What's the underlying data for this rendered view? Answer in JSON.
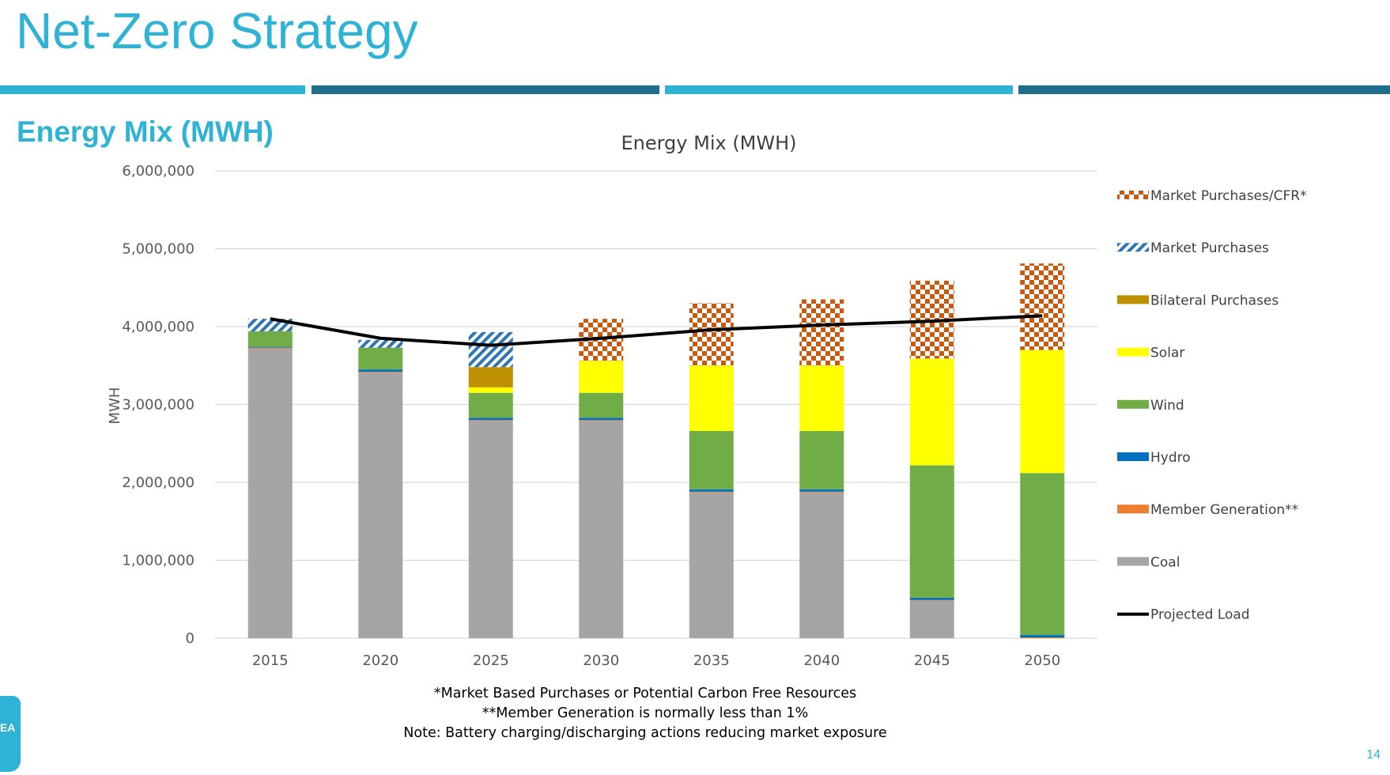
{
  "header": {
    "title": "Net-Zero Strategy",
    "section_title": "Energy Mix (MWH)",
    "page_number": "14",
    "logo_text": "EA"
  },
  "colors": {
    "accent_light": "#2eb3d6",
    "accent_dark": "#1f6e8c",
    "market_cfr": "#c55a11",
    "market": "#2e75b6",
    "bilateral": "#bf9000",
    "solar": "#ffff00",
    "wind": "#70ad47",
    "hydro": "#0070c0",
    "member": "#ed7d31",
    "coal": "#a5a5a5",
    "load": "#000000"
  },
  "notes": [
    "*Market Based Purchases or Potential Carbon Free Resources",
    "**Member Generation is normally less than 1%",
    "Note: Battery charging/discharging actions reducing market exposure"
  ],
  "chart_data": {
    "type": "bar",
    "stacked": true,
    "title": "Energy Mix (MWH)",
    "ylabel": "MWH",
    "ylim": [
      0,
      6000000
    ],
    "yticks": [
      0,
      1000000,
      2000000,
      3000000,
      4000000,
      5000000,
      6000000
    ],
    "ytick_labels": [
      "0",
      "1,000,000",
      "2,000,000",
      "3,000,000",
      "4,000,000",
      "5,000,000",
      "6,000,000"
    ],
    "categories": [
      "2015",
      "2020",
      "2025",
      "2030",
      "2035",
      "2040",
      "2045",
      "2050"
    ],
    "grid": true,
    "legend_position": "right",
    "series": [
      {
        "name": "Coal",
        "key": "coal",
        "values": [
          3720000,
          3410000,
          2790000,
          2790000,
          1870000,
          1870000,
          480000,
          0
        ]
      },
      {
        "name": "Member Generation**",
        "key": "member",
        "values": [
          10000,
          10000,
          10000,
          10000,
          10000,
          10000,
          10000,
          10000
        ]
      },
      {
        "name": "Hydro",
        "key": "hydro",
        "values": [
          10000,
          30000,
          30000,
          30000,
          30000,
          30000,
          30000,
          30000
        ]
      },
      {
        "name": "Wind",
        "key": "wind",
        "values": [
          200000,
          280000,
          320000,
          320000,
          750000,
          750000,
          1700000,
          2080000
        ]
      },
      {
        "name": "Solar",
        "key": "solar",
        "values": [
          0,
          0,
          70000,
          410000,
          840000,
          840000,
          1370000,
          1580000
        ]
      },
      {
        "name": "Bilateral Purchases",
        "key": "bilateral",
        "values": [
          0,
          0,
          260000,
          0,
          0,
          0,
          0,
          0
        ]
      },
      {
        "name": "Market Purchases",
        "key": "market",
        "values": [
          160000,
          100000,
          450000,
          0,
          0,
          0,
          0,
          0
        ]
      },
      {
        "name": "Market Purchases/CFR*",
        "key": "market_cfr",
        "values": [
          0,
          0,
          0,
          540000,
          800000,
          850000,
          1000000,
          1110000
        ]
      }
    ],
    "line": {
      "name": "Projected Load",
      "key": "load",
      "values": [
        4100000,
        3850000,
        3760000,
        3850000,
        3960000,
        4020000,
        4070000,
        4140000
      ]
    },
    "legend_order": [
      "Market Purchases/CFR*",
      "Market Purchases",
      "Bilateral Purchases",
      "Solar",
      "Wind",
      "Hydro",
      "Member Generation**",
      "Coal",
      "Projected Load"
    ]
  }
}
